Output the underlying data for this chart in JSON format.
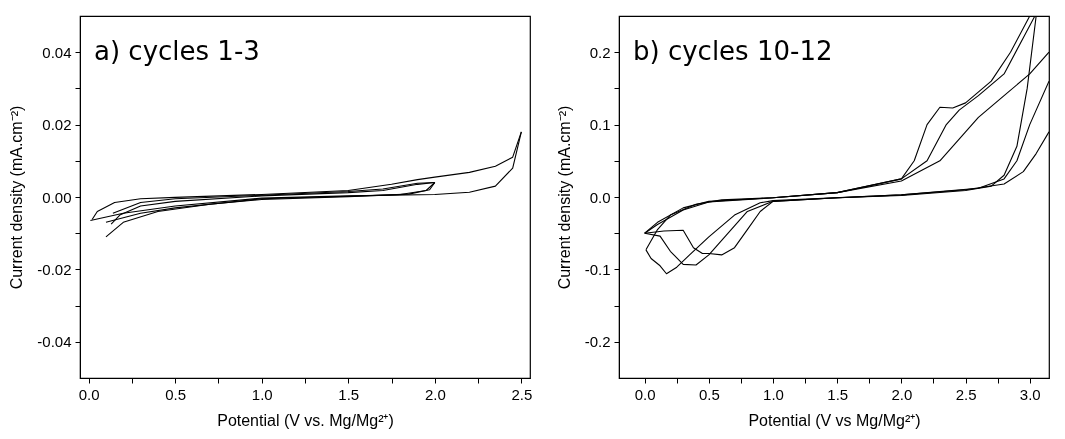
{
  "chart_data": [
    {
      "type": "line",
      "annotations": [
        "a)  cycles 1-3"
      ],
      "xlabel": "Potential (V vs. Mg/Mg²⁺)",
      "ylabel": "Current density (mA.cm⁻²)",
      "xlim": [
        -0.05,
        2.55
      ],
      "ylim": [
        -0.05,
        0.05
      ],
      "xticks": [
        {
          "value": 0,
          "label": "0.0"
        },
        {
          "value": 0.25,
          "label": null
        },
        0.5,
        {
          "value": 0.75,
          "label": null
        },
        {
          "value": 1,
          "label": "1.0"
        },
        {
          "value": 1.25,
          "label": null
        },
        1.5,
        {
          "value": 1.75,
          "label": null
        },
        {
          "value": 2,
          "label": "2.0"
        },
        {
          "value": 2.25,
          "label": null
        },
        2.5
      ],
      "yticks": [
        -0.04,
        {
          "value": -0.03,
          "label": null
        },
        -0.02,
        {
          "value": -0.01,
          "label": null
        },
        {
          "value": 0,
          "label": "0.00"
        },
        {
          "value": 0.01,
          "label": null
        },
        0.02,
        {
          "value": 0.03,
          "label": null
        },
        0.04
      ],
      "grid": false,
      "line_style": "solid",
      "series": [
        {
          "color": "#000000",
          "x": [
            0.01,
            0.2,
            0.5,
            1.0,
            1.5,
            2.0,
            2.2,
            2.35,
            2.45,
            2.5
          ],
          "values": [
            -0.0065,
            -0.0045,
            -0.0025,
            -0.0003,
            0.0003,
            0.0007,
            0.0013,
            0.003,
            0.008,
            0.018
          ]
        },
        {
          "color": "#000000",
          "x": [
            2.5,
            2.45,
            2.35,
            2.2,
            2.0,
            1.9,
            1.75,
            1.5,
            1.0,
            0.5,
            0.3,
            0.15,
            0.05,
            0.02
          ],
          "values": [
            0.018,
            0.011,
            0.0085,
            0.0068,
            0.0055,
            0.0048,
            0.0035,
            0.0018,
            0.0007,
            -0.0001,
            -0.0005,
            -0.0015,
            -0.004,
            -0.0062
          ]
        },
        {
          "color": "#000000",
          "x": [
            0.1,
            0.3,
            0.5,
            1.0,
            1.5,
            1.8,
            1.95,
            2.0
          ],
          "values": [
            -0.007,
            -0.0045,
            -0.003,
            -0.0005,
            0.0002,
            0.0007,
            0.0018,
            0.004
          ]
        },
        {
          "color": "#000000",
          "x": [
            2.0,
            1.9,
            1.7,
            1.5,
            1.0,
            0.5,
            0.3,
            0.14
          ],
          "values": [
            0.004,
            0.0038,
            0.0022,
            0.0015,
            0.0005,
            -0.0005,
            -0.0015,
            -0.0045
          ]
        },
        {
          "color": "#000000",
          "x": [
            0.1,
            0.2,
            0.4,
            0.7,
            1.0,
            1.5,
            1.85,
            1.97,
            2.0
          ],
          "values": [
            -0.011,
            -0.007,
            -0.004,
            -0.002,
            -0.0007,
            0.0001,
            0.0008,
            0.002,
            0.004
          ]
        },
        {
          "color": "#000000",
          "x": [
            2.0,
            1.9,
            1.7,
            1.5,
            1.0,
            0.5,
            0.3,
            0.18,
            0.13
          ],
          "values": [
            0.004,
            0.0035,
            0.0018,
            0.0012,
            0.0003,
            -0.0012,
            -0.0025,
            -0.005,
            -0.0075
          ]
        }
      ]
    },
    {
      "type": "line",
      "annotations": [
        "b)  cycles 10-12"
      ],
      "xlabel": "Potential (V vs Mg/Mg²⁺)",
      "ylabel": "Current density (mA.cm⁻²)",
      "xlim": [
        -0.2,
        3.15
      ],
      "ylim": [
        -0.25,
        0.25
      ],
      "xticks": [
        {
          "value": 0,
          "label": "0.0"
        },
        {
          "value": 0.25,
          "label": null
        },
        0.5,
        {
          "value": 0.75,
          "label": null
        },
        {
          "value": 1,
          "label": "1.0"
        },
        {
          "value": 1.25,
          "label": null
        },
        1.5,
        {
          "value": 1.75,
          "label": null
        },
        {
          "value": 2,
          "label": "2.0"
        },
        {
          "value": 2.25,
          "label": null
        },
        2.5,
        {
          "value": 2.75,
          "label": null
        },
        {
          "value": 3,
          "label": "3.0"
        }
      ],
      "yticks": [
        -0.2,
        {
          "value": -0.15,
          "label": null
        },
        -0.1,
        {
          "value": -0.05,
          "label": null
        },
        {
          "value": 0,
          "label": "0.0"
        },
        {
          "value": 0.05,
          "label": null
        },
        0.1,
        {
          "value": 0.15,
          "label": null
        },
        0.2
      ],
      "grid": false,
      "line_style": "solid",
      "series": [
        {
          "color": "#000000",
          "x": [
            0.0,
            0.1,
            0.3,
            0.5,
            1.0,
            1.5,
            2.0,
            2.1,
            2.2,
            2.3,
            2.4,
            2.5,
            2.7,
            2.85,
            3.0
          ],
          "values": [
            -0.05,
            -0.035,
            -0.015,
            -0.006,
            -0.001,
            0.006,
            0.025,
            0.05,
            0.1,
            0.124,
            0.123,
            0.13,
            0.16,
            0.2,
            0.25
          ]
        },
        {
          "color": "#000000",
          "x": [
            0.0,
            0.1,
            0.3,
            0.5,
            1.0,
            1.5,
            2.0,
            2.2,
            2.35,
            2.45,
            2.6,
            2.8,
            2.95,
            3.04
          ],
          "values": [
            -0.05,
            -0.038,
            -0.018,
            -0.007,
            -0.001,
            0.006,
            0.025,
            0.05,
            0.1,
            0.12,
            0.14,
            0.17,
            0.22,
            0.25
          ]
        },
        {
          "color": "#000000",
          "x": [
            0.01,
            0.1,
            0.2,
            0.4,
            0.6,
            1.0,
            1.5,
            2.0,
            2.3,
            2.5,
            2.6,
            2.8,
            3.0,
            3.15
          ],
          "values": [
            -0.073,
            -0.045,
            -0.025,
            -0.01,
            -0.004,
            -0.001,
            0.006,
            0.022,
            0.05,
            0.09,
            0.11,
            0.14,
            0.17,
            0.2
          ]
        },
        {
          "color": "#000000",
          "x": [
            3.05,
            2.98,
            2.9,
            2.8,
            2.7,
            2.5,
            2.0,
            1.5,
            1.0,
            0.9,
            0.8,
            0.7,
            0.6,
            0.5,
            0.45,
            0.38,
            0.3,
            0.15,
            0.0
          ],
          "values": [
            0.25,
            0.15,
            0.07,
            0.03,
            0.015,
            0.009,
            0.002,
            -0.001,
            -0.006,
            -0.02,
            -0.045,
            -0.07,
            -0.08,
            -0.078,
            -0.078,
            -0.07,
            -0.046,
            -0.047,
            -0.05
          ]
        },
        {
          "color": "#000000",
          "x": [
            3.15,
            3.0,
            2.9,
            2.8,
            2.6,
            2.0,
            1.5,
            1.0,
            0.8,
            0.65,
            0.5,
            0.4,
            0.3,
            0.2,
            0.12,
            0.0
          ],
          "values": [
            0.16,
            0.1,
            0.05,
            0.025,
            0.012,
            0.003,
            -0.001,
            -0.006,
            -0.02,
            -0.05,
            -0.08,
            -0.094,
            -0.093,
            -0.075,
            -0.054,
            -0.05
          ]
        },
        {
          "color": "#000000",
          "x": [
            3.15,
            3.05,
            2.95,
            2.8,
            2.5,
            2.0,
            1.0,
            0.9,
            0.7,
            0.5,
            0.35,
            0.25,
            0.17,
            0.12,
            0.05,
            0.01
          ],
          "values": [
            0.09,
            0.06,
            0.035,
            0.018,
            0.01,
            0.003,
            -0.005,
            -0.008,
            -0.025,
            -0.055,
            -0.08,
            -0.097,
            -0.106,
            -0.095,
            -0.085,
            -0.073
          ]
        }
      ]
    }
  ]
}
